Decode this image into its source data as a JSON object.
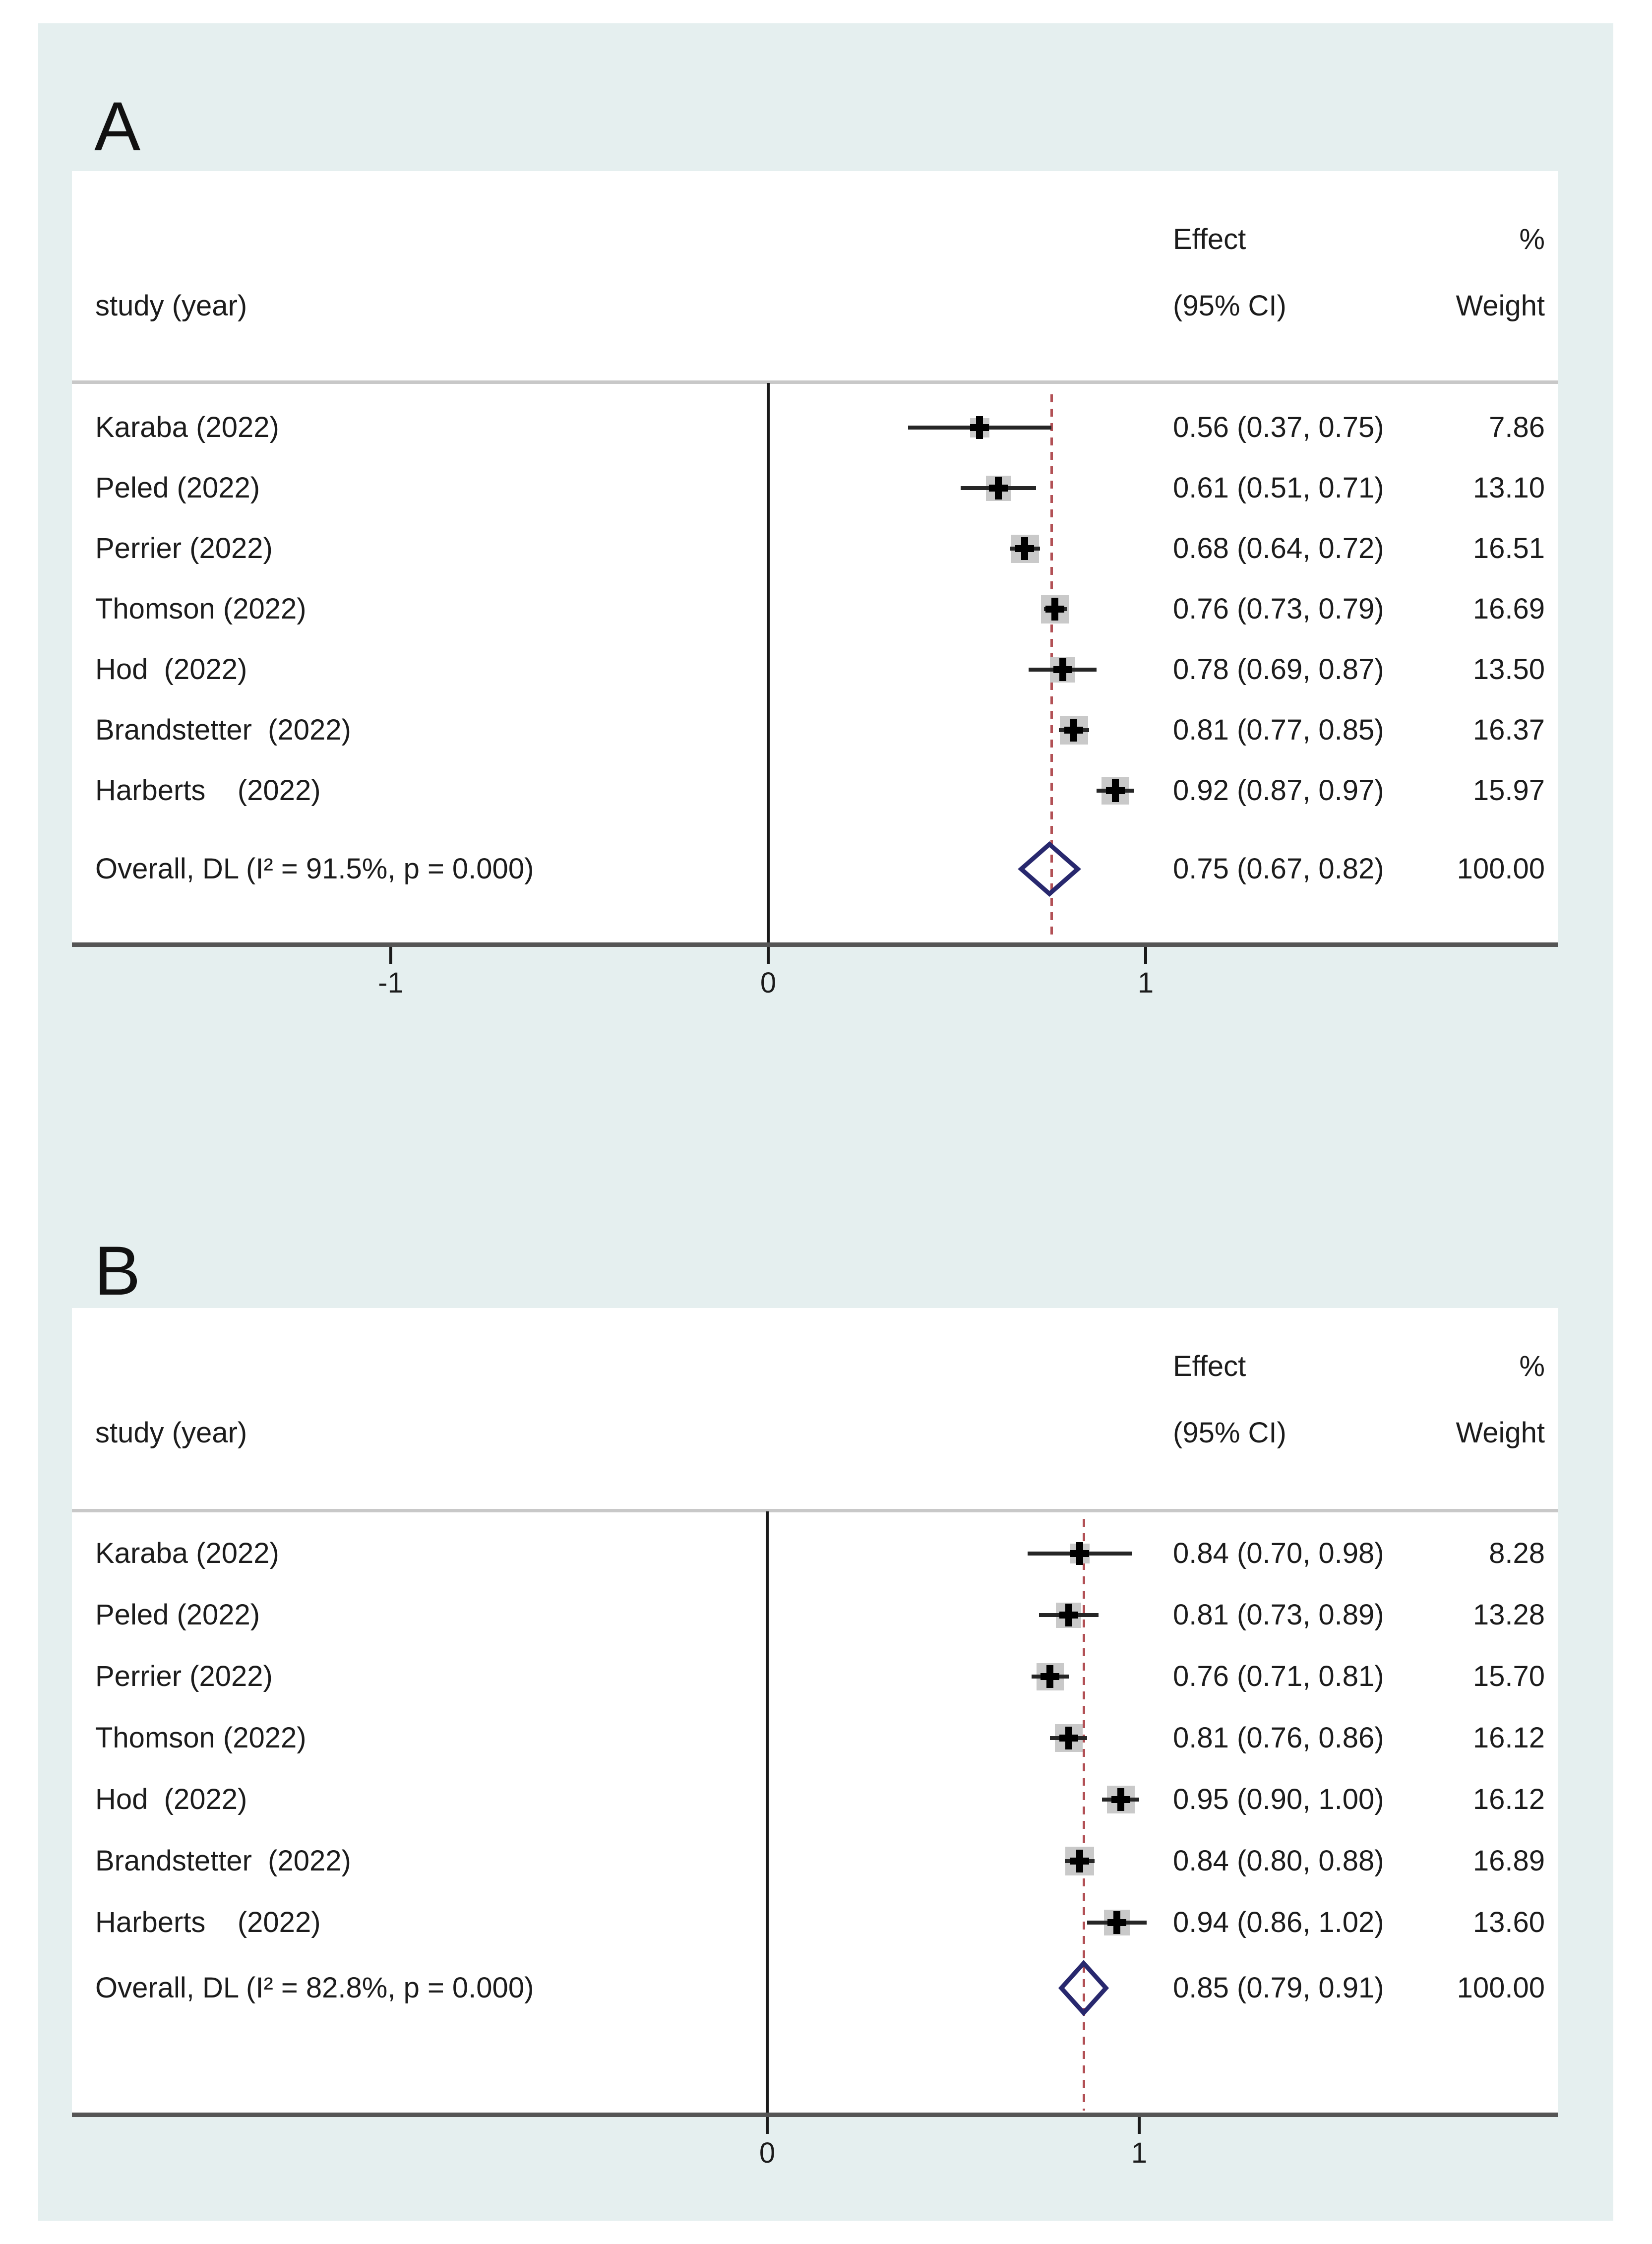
{
  "figure": {
    "background_color": "#e5efef",
    "panel_letters": [
      "A",
      "B"
    ]
  },
  "colors": {
    "background": "#e5efef",
    "text": "#1c1c1c",
    "header_rule": "#c8c8c8",
    "axis_line": "#555555",
    "zero_line": "#1a1a1a",
    "dashed_line": "#b25055",
    "ci_line": "#262626",
    "weight_box": "#c9c9c9",
    "marker": "#000000",
    "diamond": "#28286e"
  },
  "panels": [
    {
      "letter": "A",
      "column_headers": {
        "study": "study (year)",
        "effect_line1": "Effect",
        "effect_line2": "(95% CI)",
        "weight_line1": "%",
        "weight_line2": "Weight"
      }
    },
    {
      "letter": "B",
      "column_headers": {
        "study": "study (year)",
        "effect_line1": "Effect",
        "effect_line2": "(95% CI)",
        "weight_line1": "%",
        "weight_line2": "Weight"
      }
    }
  ],
  "chart_data": [
    {
      "type": "forest",
      "title": "A",
      "xticks": [
        {
          "label": "-1",
          "value": -1
        },
        {
          "label": "0",
          "value": 0
        },
        {
          "label": "1",
          "value": 1
        }
      ],
      "dashed_line_at": 0.75,
      "studies": [
        {
          "name": "Karaba (2022)",
          "effect": 0.56,
          "ci_low": 0.37,
          "ci_high": 0.75,
          "weight": 7.86,
          "effect_label": "0.56 (0.37, 0.75)",
          "weight_label": "7.86"
        },
        {
          "name": "Peled (2022)",
          "effect": 0.61,
          "ci_low": 0.51,
          "ci_high": 0.71,
          "weight": 13.1,
          "effect_label": "0.61 (0.51, 0.71)",
          "weight_label": "13.10"
        },
        {
          "name": "Perrier (2022)",
          "effect": 0.68,
          "ci_low": 0.64,
          "ci_high": 0.72,
          "weight": 16.51,
          "effect_label": "0.68 (0.64, 0.72)",
          "weight_label": "16.51"
        },
        {
          "name": "Thomson (2022)",
          "effect": 0.76,
          "ci_low": 0.73,
          "ci_high": 0.79,
          "weight": 16.69,
          "effect_label": "0.76 (0.73, 0.79)",
          "weight_label": "16.69"
        },
        {
          "name": "Hod  (2022)",
          "effect": 0.78,
          "ci_low": 0.69,
          "ci_high": 0.87,
          "weight": 13.5,
          "effect_label": "0.78 (0.69, 0.87)",
          "weight_label": "13.50"
        },
        {
          "name": "Brandstetter  (2022)",
          "effect": 0.81,
          "ci_low": 0.77,
          "ci_high": 0.85,
          "weight": 16.37,
          "effect_label": "0.81 (0.77, 0.85)",
          "weight_label": "16.37"
        },
        {
          "name": "Harberts    (2022)",
          "effect": 0.92,
          "ci_low": 0.87,
          "ci_high": 0.97,
          "weight": 15.97,
          "effect_label": "0.92 (0.87, 0.97)",
          "weight_label": "15.97"
        }
      ],
      "overall": {
        "label": "Overall, DL (I² = 91.5%, p = 0.000)",
        "effect": 0.75,
        "ci_low": 0.67,
        "ci_high": 0.82,
        "effect_label": "0.75 (0.67, 0.82)",
        "weight_label": "100.00"
      }
    },
    {
      "type": "forest",
      "title": "B",
      "xticks": [
        {
          "label": "0",
          "value": 0
        },
        {
          "label": "1",
          "value": 1
        }
      ],
      "dashed_line_at": 0.85,
      "studies": [
        {
          "name": "Karaba (2022)",
          "effect": 0.84,
          "ci_low": 0.7,
          "ci_high": 0.98,
          "weight": 8.28,
          "effect_label": "0.84 (0.70, 0.98)",
          "weight_label": "8.28"
        },
        {
          "name": "Peled (2022)",
          "effect": 0.81,
          "ci_low": 0.73,
          "ci_high": 0.89,
          "weight": 13.28,
          "effect_label": "0.81 (0.73, 0.89)",
          "weight_label": "13.28"
        },
        {
          "name": "Perrier (2022)",
          "effect": 0.76,
          "ci_low": 0.71,
          "ci_high": 0.81,
          "weight": 15.7,
          "effect_label": "0.76 (0.71, 0.81)",
          "weight_label": "15.70"
        },
        {
          "name": "Thomson (2022)",
          "effect": 0.81,
          "ci_low": 0.76,
          "ci_high": 0.86,
          "weight": 16.12,
          "effect_label": "0.81 (0.76, 0.86)",
          "weight_label": "16.12"
        },
        {
          "name": "Hod  (2022)",
          "effect": 0.95,
          "ci_low": 0.9,
          "ci_high": 1.0,
          "weight": 16.12,
          "effect_label": "0.95 (0.90, 1.00)",
          "weight_label": "16.12"
        },
        {
          "name": "Brandstetter  (2022)",
          "effect": 0.84,
          "ci_low": 0.8,
          "ci_high": 0.88,
          "weight": 16.89,
          "effect_label": "0.84 (0.80, 0.88)",
          "weight_label": "16.89"
        },
        {
          "name": "Harberts    (2022)",
          "effect": 0.94,
          "ci_low": 0.86,
          "ci_high": 1.02,
          "weight": 13.6,
          "effect_label": "0.94 (0.86, 1.02)",
          "weight_label": "13.60"
        }
      ],
      "overall": {
        "label": "Overall, DL (I² = 82.8%, p = 0.000)",
        "effect": 0.85,
        "ci_low": 0.79,
        "ci_high": 0.91,
        "effect_label": "0.85 (0.79, 0.91)",
        "weight_label": "100.00"
      }
    }
  ]
}
